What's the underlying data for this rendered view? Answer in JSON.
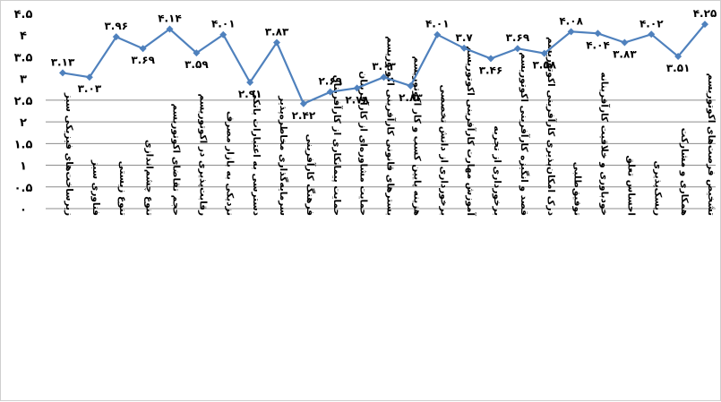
{
  "chart_data": {
    "type": "line",
    "title": "",
    "xlabel": "",
    "ylabel": "",
    "ylim": [
      0,
      4.5
    ],
    "y_ticks": [
      0,
      0.5,
      1,
      1.5,
      2,
      2.5,
      3,
      3.5,
      4,
      4.5
    ],
    "y_tick_labels": [
      "۰",
      "۰.۵",
      "۱",
      "۱.۵",
      "۲",
      "۲.۵",
      "۳",
      "۳.۵",
      "۴",
      "۴.۵"
    ],
    "grid": "horizontal gridlines from 0 to 2.5, axis at 2.5 step below",
    "legend": "none",
    "line_color": "#4f81bd",
    "categories": [
      "زیرساخت‌های فیزیکی سبز",
      "فناوری سبز",
      "تنوع زیستی",
      "تنوع چشم‌اندازی",
      "حجم تقاضای اکوتوریسم",
      "رقابت‌پذیری در اکوتوریسم",
      "نزدیکی به بازار مصرف",
      "دسترسی به اعتبارات بانکی",
      "سرمایه‌گذاری مخاطره‌پذیر",
      "فرهنگ کارآفرینی",
      "حمایت پیمانکاری از کارآفرینان",
      "حمایت مشاوره‌ای از کارآفرینان",
      "بسترهای قانونی کارآفرینی اکوتوریسم",
      "هزینه پایین کسب و کار اکوتوریسم",
      "برخورداری از دانش تخصصی",
      "آموزش مهارت کارآفرینی اکوتوریسم",
      "برخورداری از تجربه",
      "قصد و انگیزه کارآفرینی اکوتوریسم",
      "درک امکان‌پذیری کارآفرینی اکوتوریسم",
      "توفیق‌طلبی",
      "خودباوری و خلاقیت کارآفرینانه",
      "احساس تعلق",
      "ریسک‌پذیری",
      "همکاری و مشارکت",
      "تشخیص فرصت‌های اکوتوریسم"
    ],
    "values": [
      3.13,
      3.03,
      3.96,
      3.69,
      4.14,
      3.59,
      4.01,
      2.91,
      3.83,
      2.42,
      2.69,
      2.78,
      3.03,
      2.83,
      4.01,
      3.7,
      3.46,
      3.69,
      3.58,
      4.08,
      4.04,
      3.83,
      4.02,
      3.51,
      4.25
    ],
    "value_labels": [
      "۳.۱۳",
      "۳.۰۳",
      "۳.۹۶",
      "۳.۶۹",
      "۴.۱۴",
      "۳.۵۹",
      "۴.۰۱",
      "۲.۹۱",
      "۳.۸۳",
      "۲.۴۲",
      "۲.۶۹",
      "۲.۷۸",
      "۳.۰۳",
      "۲.۸۳",
      "۴.۰۱",
      "۳.۷",
      "۳.۴۶",
      "۳.۶۹",
      "۳.۵۸",
      "۴.۰۸",
      "۴.۰۴",
      "۳.۸۳",
      "۴.۰۲",
      "۳.۵۱",
      "۴.۲۵"
    ],
    "label_positions": [
      "above",
      "below",
      "above",
      "below",
      "above",
      "below",
      "above",
      "below",
      "above",
      "below",
      "above",
      "below",
      "above",
      "below",
      "above",
      "above",
      "below",
      "above",
      "below",
      "above",
      "below",
      "below",
      "above",
      "below",
      "above"
    ]
  }
}
